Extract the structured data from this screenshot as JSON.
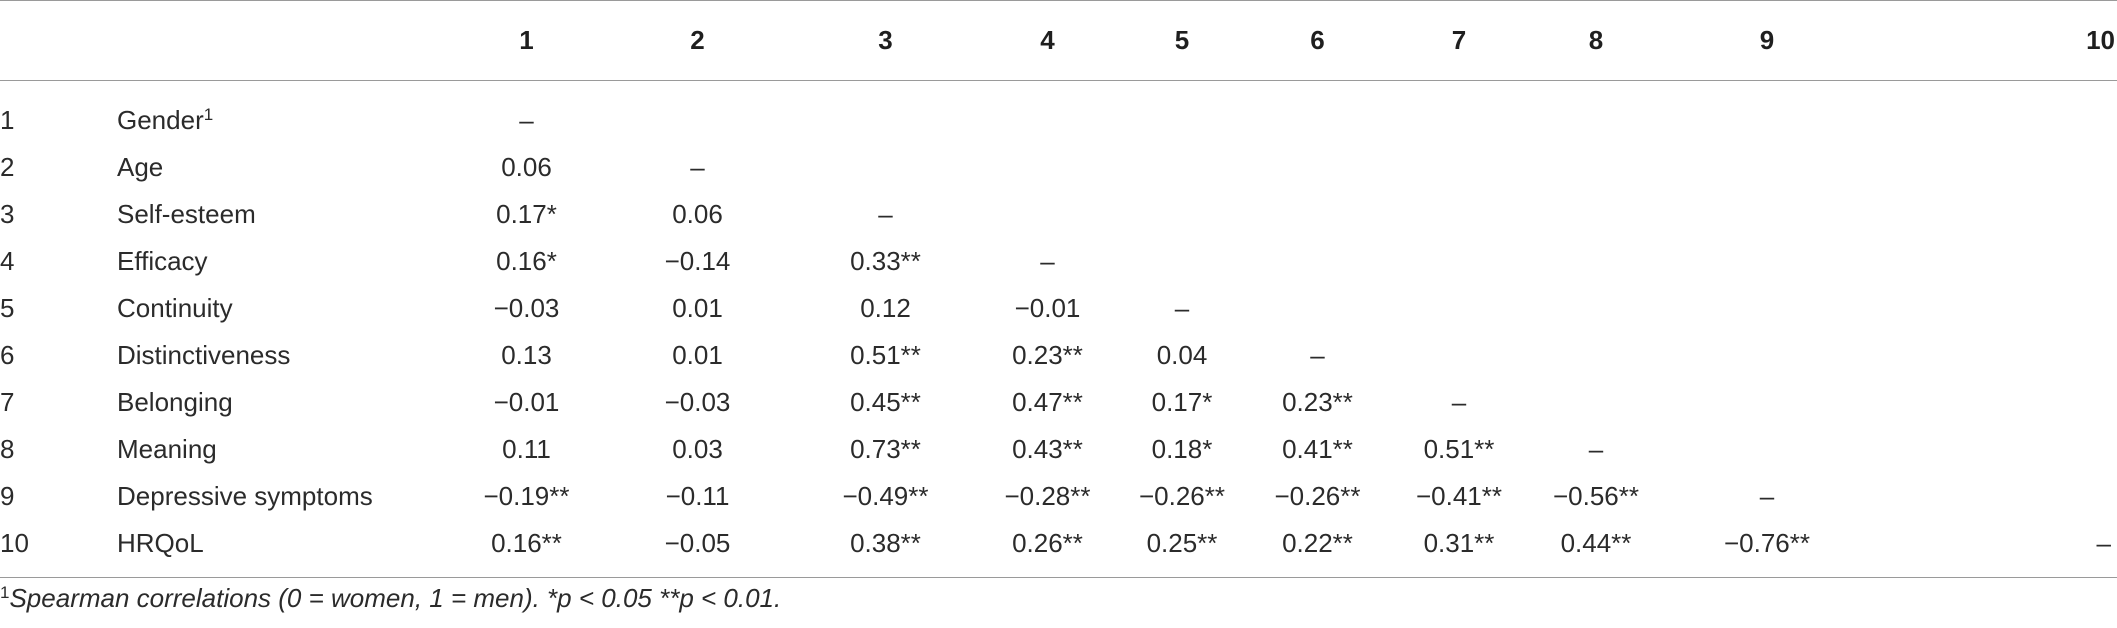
{
  "table": {
    "headers": [
      "",
      "",
      "1",
      "2",
      "3",
      "4",
      "5",
      "6",
      "7",
      "8",
      "9",
      "10"
    ],
    "rows": [
      {
        "index": "1",
        "label": "Gender",
        "sup": "1",
        "values": [
          "–",
          "",
          "",
          "",
          "",
          "",
          "",
          "",
          "",
          ""
        ]
      },
      {
        "index": "2",
        "label": "Age",
        "sup": "",
        "values": [
          "0.06",
          "–",
          "",
          "",
          "",
          "",
          "",
          "",
          "",
          ""
        ]
      },
      {
        "index": "3",
        "label": "Self-esteem",
        "sup": "",
        "values": [
          "0.17*",
          "0.06",
          "–",
          "",
          "",
          "",
          "",
          "",
          "",
          ""
        ]
      },
      {
        "index": "4",
        "label": "Efficacy",
        "sup": "",
        "values": [
          "0.16*",
          "−0.14",
          "0.33**",
          "–",
          "",
          "",
          "",
          "",
          "",
          ""
        ]
      },
      {
        "index": "5",
        "label": "Continuity",
        "sup": "",
        "values": [
          "−0.03",
          "0.01",
          "0.12",
          "−0.01",
          "–",
          "",
          "",
          "",
          "",
          ""
        ]
      },
      {
        "index": "6",
        "label": "Distinctiveness",
        "sup": "",
        "values": [
          "0.13",
          "0.01",
          "0.51**",
          "0.23**",
          "0.04",
          "–",
          "",
          "",
          "",
          ""
        ]
      },
      {
        "index": "7",
        "label": "Belonging",
        "sup": "",
        "values": [
          "−0.01",
          "−0.03",
          "0.45**",
          "0.47**",
          "0.17*",
          "0.23**",
          "–",
          "",
          "",
          ""
        ]
      },
      {
        "index": "8",
        "label": "Meaning",
        "sup": "",
        "values": [
          "0.11",
          "0.03",
          "0.73**",
          "0.43**",
          "0.18*",
          "0.41**",
          "0.51**",
          "–",
          "",
          ""
        ]
      },
      {
        "index": "9",
        "label": "Depressive symptoms",
        "sup": "",
        "values": [
          "−0.19**",
          "−0.11",
          "−0.49**",
          "−0.28**",
          "−0.26**",
          "−0.26**",
          "−0.41**",
          "−0.56**",
          "–",
          ""
        ]
      },
      {
        "index": "10",
        "label": "HRQoL",
        "sup": "",
        "values": [
          "0.16**",
          "−0.05",
          "0.38**",
          "0.26**",
          "0.25**",
          "0.22**",
          "0.31**",
          "0.44**",
          "−0.76**",
          "–"
        ]
      }
    ]
  },
  "footnote": {
    "mark": "1",
    "text": "Spearman correlations (0 = women, 1 = men). *p <  0.05 **p < 0.01."
  }
}
